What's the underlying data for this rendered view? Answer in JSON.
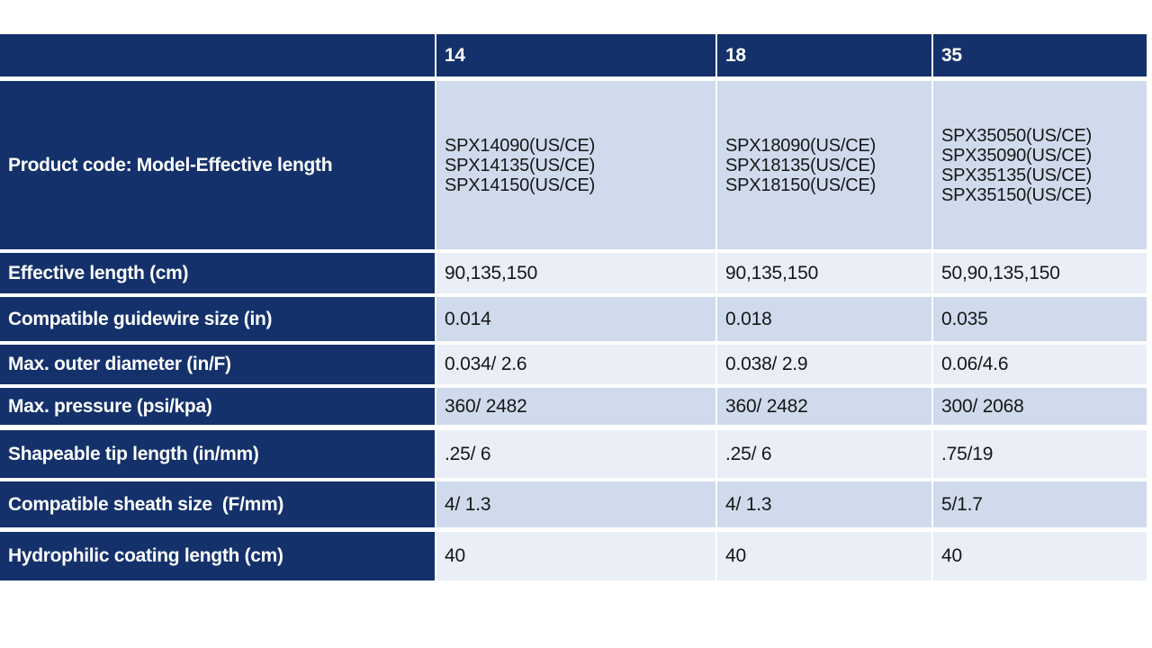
{
  "colors": {
    "navy": "#14316b",
    "row_medium": "#cfdaec",
    "row_light": "#e9eef7",
    "label_text": "#ffffff",
    "value_text": "#161616",
    "border": "#ffffff"
  },
  "table": {
    "header": {
      "corner": "",
      "col_14": "14",
      "col_18": "18",
      "col_35": "35"
    },
    "product_row": {
      "label": "Product code: Model-Effective length",
      "codes_14": [
        "SPX14090(US/CE)",
        "SPX14135(US/CE)",
        "SPX14150(US/CE)"
      ],
      "codes_18": [
        "SPX18090(US/CE)",
        "SPX18135(US/CE)",
        "SPX18150(US/CE)"
      ],
      "codes_35": [
        "SPX35050(US/CE)",
        "SPX35090(US/CE)",
        "SPX35135(US/CE)",
        "SPX35150(US/CE)"
      ]
    },
    "rows": [
      {
        "label": "Effective length (cm)",
        "values": [
          "90,135,150",
          "90,135,150",
          "50,90,135,150"
        ]
      },
      {
        "label": "Compatible guidewire size (in)",
        "values": [
          "0.014",
          "0.018",
          "0.035"
        ]
      },
      {
        "label": "Max. outer diameter (in/F)",
        "values": [
          "0.034/ 2.6",
          "0.038/ 2.9",
          "0.06/4.6"
        ]
      },
      {
        "label": "Max. pressure (psi/kpa)",
        "values": [
          "360/ 2482",
          "360/ 2482",
          "300/ 2068"
        ]
      },
      {
        "label": "Shapeable tip length (in/mm)",
        "values": [
          ".25/ 6",
          ".25/ 6",
          ".75/19"
        ]
      },
      {
        "label": "Compatible sheath size  (F/mm)",
        "values": [
          "4/ 1.3",
          "4/ 1.3",
          "5/1.7"
        ]
      },
      {
        "label": "Hydrophilic coating length (cm)",
        "values": [
          "40",
          "40",
          "40"
        ]
      }
    ]
  }
}
